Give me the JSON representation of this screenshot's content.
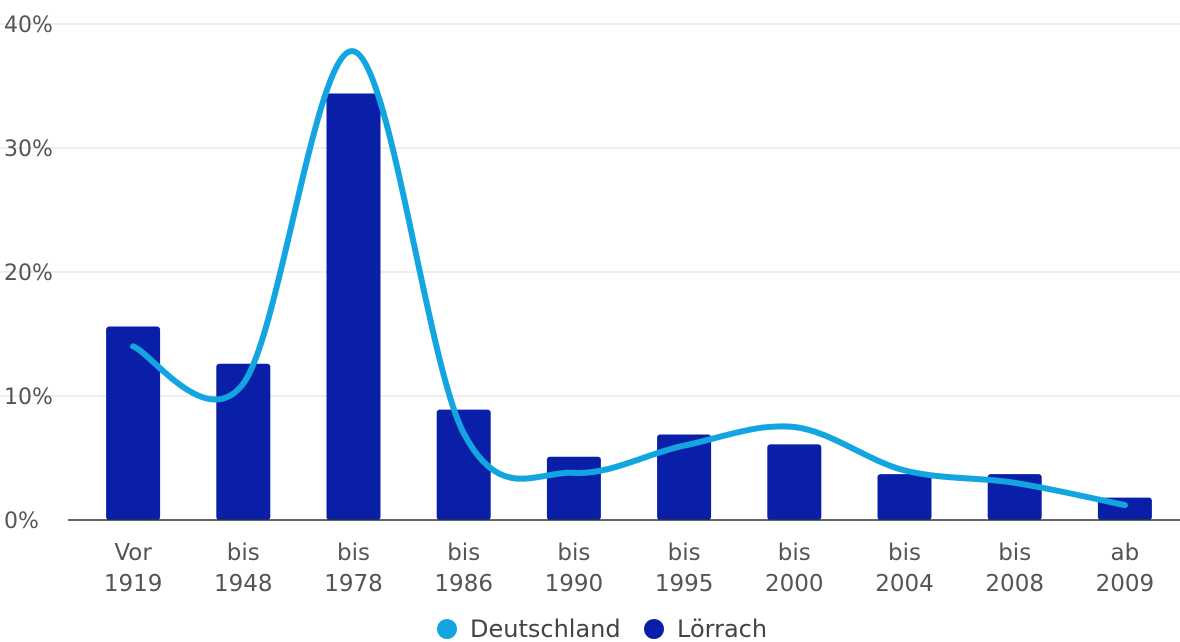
{
  "chart_data": {
    "type": "bar",
    "categories": [
      [
        "Vor",
        "1919"
      ],
      [
        "bis",
        "1948"
      ],
      [
        "bis",
        "1978"
      ],
      [
        "bis",
        "1986"
      ],
      [
        "bis",
        "1990"
      ],
      [
        "bis",
        "1995"
      ],
      [
        "bis",
        "2000"
      ],
      [
        "bis",
        "2004"
      ],
      [
        "bis",
        "2008"
      ],
      [
        "ab",
        "2009"
      ]
    ],
    "series": [
      {
        "name": "Lörrach",
        "type": "bar",
        "color": "#0a1fa8",
        "values": [
          15.6,
          12.6,
          34.4,
          8.9,
          5.1,
          6.9,
          6.1,
          3.7,
          3.7,
          1.8
        ]
      },
      {
        "name": "Deutschland",
        "type": "line",
        "color": "#13a5e0",
        "values": [
          14.0,
          11.0,
          37.8,
          7.0,
          3.8,
          6.0,
          7.5,
          4.0,
          3.0,
          1.2
        ]
      }
    ],
    "yticks": [
      0,
      10,
      20,
      30,
      40
    ],
    "ytick_labels": [
      "0%",
      "10%",
      "20%",
      "30%",
      "40%"
    ],
    "ylim": [
      0,
      40
    ],
    "grid": true,
    "legend_position": "bottom-center",
    "title": "",
    "xlabel": "",
    "ylabel": ""
  }
}
